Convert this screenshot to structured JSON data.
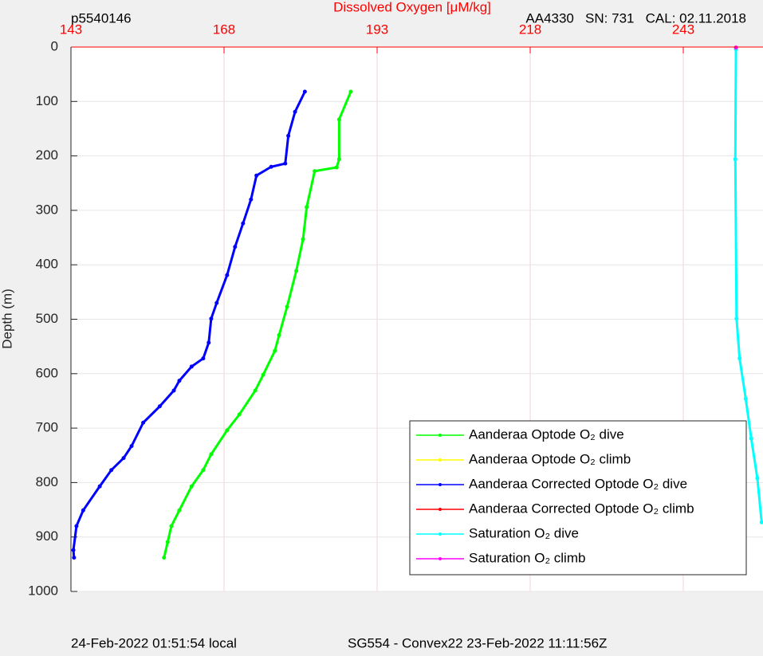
{
  "chart_data": {
    "type": "line",
    "title": "Dissolved Oxygen [μM/kg]",
    "top_left_label": "p5540146",
    "top_right_label": "AA4330   SN: 731   CAL: 02.11.2018",
    "footer_left": "24-Feb-2022 01:51:54 local",
    "footer_right": "SG554 - Convex22 23-Feb-2022 11:11:56Z",
    "y_label": "Depth (m)",
    "xlim": [
      143,
      256
    ],
    "xticks": [
      143,
      168,
      193,
      218,
      243
    ],
    "ylim": [
      0,
      1000
    ],
    "yticks": [
      0,
      100,
      200,
      300,
      400,
      500,
      600,
      700,
      800,
      900,
      1000
    ],
    "y_inverted": true,
    "x_axis_position": "top",
    "grid": true,
    "legend_position": "lower right",
    "series": [
      {
        "name": "Aanderaa Optode O₂ dive",
        "color": "#00ff00",
        "x": [
          188.7,
          186.8,
          186.8,
          186.4,
          182.8,
          181.5,
          180.9,
          179.8,
          178.3,
          177.0,
          176.3,
          174.4,
          173.1,
          170.5,
          168.5,
          165.9,
          164.6,
          162.7,
          160.7,
          159.4,
          158.8,
          158.2
        ],
        "values": [
          82,
          133,
          206,
          221,
          228,
          294,
          353,
          411,
          477,
          529,
          558,
          602,
          631,
          675,
          704,
          748,
          777,
          807,
          851,
          880,
          909,
          938
        ]
      },
      {
        "name": "Aanderaa Optode O₂ climb",
        "color": "#ffff00",
        "x": [],
        "values": []
      },
      {
        "name": "Aanderaa Corrected Optode O₂ dive",
        "color": "#0000ff",
        "x": [
          181.2,
          179.6,
          178.5,
          178.0,
          175.7,
          173.3,
          172.4,
          171.1,
          169.8,
          168.5,
          166.8,
          165.9,
          165.5,
          164.6,
          162.7,
          160.7,
          159.8,
          157.5,
          154.8,
          152.9,
          151.6,
          149.6,
          147.7,
          145.0,
          143.9,
          143.4,
          143.5
        ],
        "values": [
          82,
          119,
          163,
          214,
          220,
          236,
          280,
          324,
          367,
          419,
          470,
          499,
          543,
          572,
          587,
          613,
          631,
          660,
          690,
          733,
          755,
          777,
          807,
          851,
          880,
          924,
          938
        ]
      },
      {
        "name": "Aanderaa Corrected Optode O₂ climb",
        "color": "#ff0000",
        "x": [],
        "values": []
      },
      {
        "name": "Saturation O₂ dive",
        "color": "#00ffff",
        "x": [
          251.6,
          251.5,
          251.7,
          252.2,
          253.2,
          254.1,
          255.1,
          255.8
        ],
        "values": [
          4,
          206,
          499,
          572,
          646,
          719,
          792,
          873
        ]
      },
      {
        "name": "Saturation O₂ climb",
        "color": "#ff00ff",
        "x": [
          251.6
        ],
        "values": [
          1
        ]
      }
    ]
  }
}
